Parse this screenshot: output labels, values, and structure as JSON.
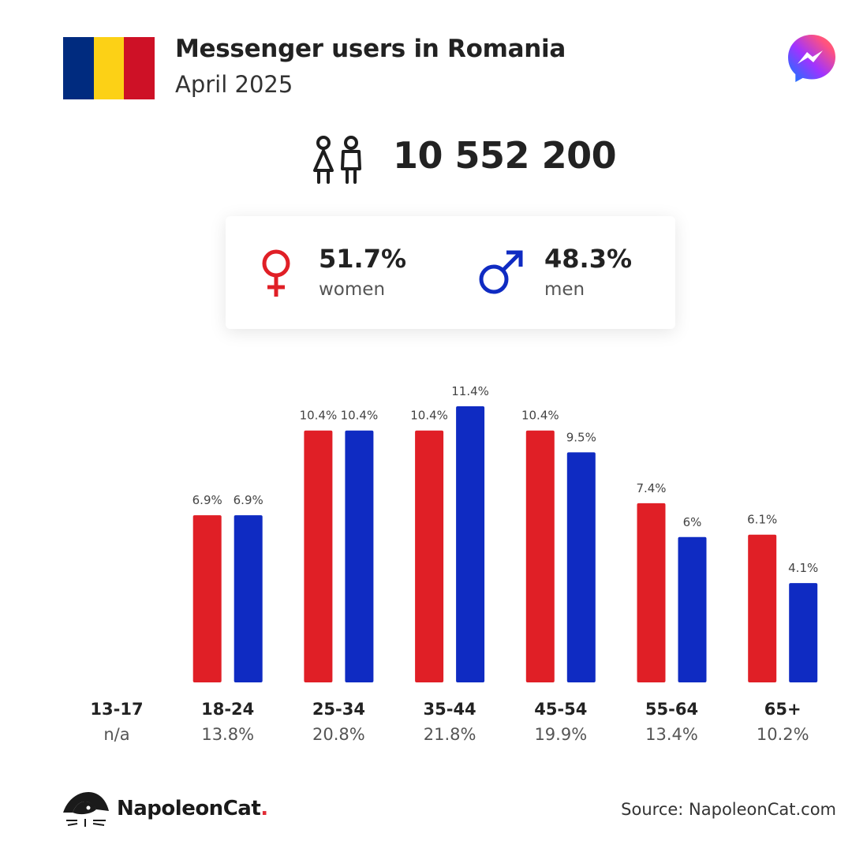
{
  "header": {
    "title": "Messenger users in Romania",
    "subtitle": "April 2025",
    "flag_colors": [
      "#002B7F",
      "#FCD116",
      "#CE1126"
    ],
    "app_icon": "messenger-icon"
  },
  "total": {
    "value": "10 552 200",
    "icon": "users-icon"
  },
  "gender": {
    "women": {
      "pct": "51.7%",
      "label": "women",
      "icon": "female-icon",
      "color": "#e01f26"
    },
    "men": {
      "pct": "48.3%",
      "label": "men",
      "icon": "male-icon",
      "color": "#0f2bc2"
    }
  },
  "colors": {
    "women": "#e01f26",
    "men": "#0f2bc2"
  },
  "chart_data": {
    "type": "bar",
    "categories": [
      "13-17",
      "18-24",
      "25-34",
      "35-44",
      "45-54",
      "55-64",
      "65+"
    ],
    "category_totals": [
      "n/a",
      "13.8%",
      "20.8%",
      "21.8%",
      "19.9%",
      "13.4%",
      "10.2%"
    ],
    "series": [
      {
        "name": "women",
        "values": [
          null,
          6.9,
          10.4,
          10.4,
          10.4,
          7.4,
          6.1
        ],
        "labels": [
          "",
          "6.9%",
          "10.4%",
          "10.4%",
          "10.4%",
          "7.4%",
          "6.1%"
        ]
      },
      {
        "name": "men",
        "values": [
          null,
          6.9,
          10.4,
          11.4,
          9.5,
          6,
          4.1
        ],
        "labels": [
          "",
          "6.9%",
          "10.4%",
          "11.4%",
          "9.5%",
          "6%",
          "4.1%"
        ]
      }
    ],
    "grid": false,
    "legend": "none"
  },
  "footer": {
    "brand_name": "NapoleonCat",
    "brand_dot": ".",
    "source": "Source: NapoleonCat.com"
  }
}
